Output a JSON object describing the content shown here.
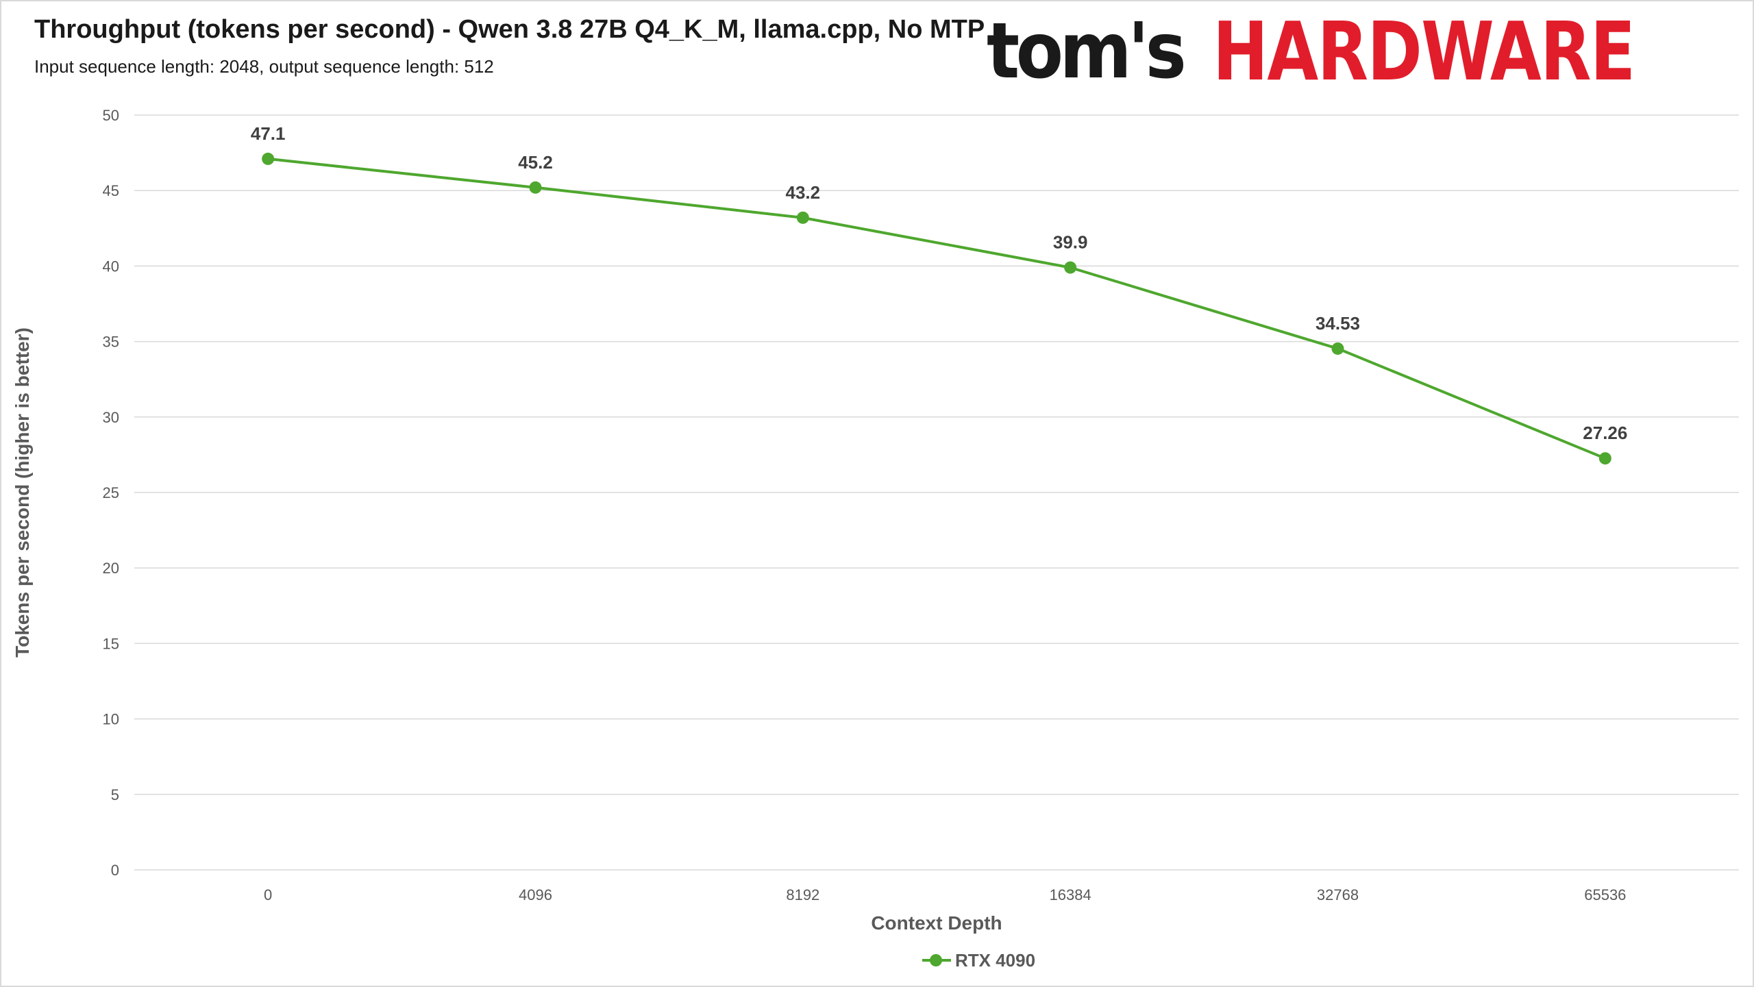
{
  "chart_data": {
    "type": "line",
    "title": "Throughput (tokens per second) - Qwen 3.8 27B Q4_K_M, llama.cpp, No MTP",
    "subtitle": "Input sequence length: 2048, output sequence length: 512",
    "xlabel": "Context Depth",
    "ylabel": "Tokens per second (higher is better)",
    "categories": [
      "0",
      "4096",
      "8192",
      "16384",
      "32768",
      "65536"
    ],
    "series": [
      {
        "name": "RTX 4090",
        "values": [
          47.1,
          45.2,
          43.2,
          39.9,
          34.53,
          27.26
        ],
        "labels": [
          "47.1",
          "45.2",
          "43.2",
          "39.9",
          "34.53",
          "27.26"
        ],
        "color": "#4ea72e"
      }
    ],
    "ylim": [
      0,
      50
    ],
    "yticks": [
      0,
      5,
      10,
      15,
      20,
      25,
      30,
      35,
      40,
      45,
      50
    ],
    "grid": true,
    "legend_position": "bottom"
  },
  "branding": {
    "logo_part1": "tom's",
    "logo_part2": "HARDWARE",
    "logo_color": "#e21d2b"
  }
}
